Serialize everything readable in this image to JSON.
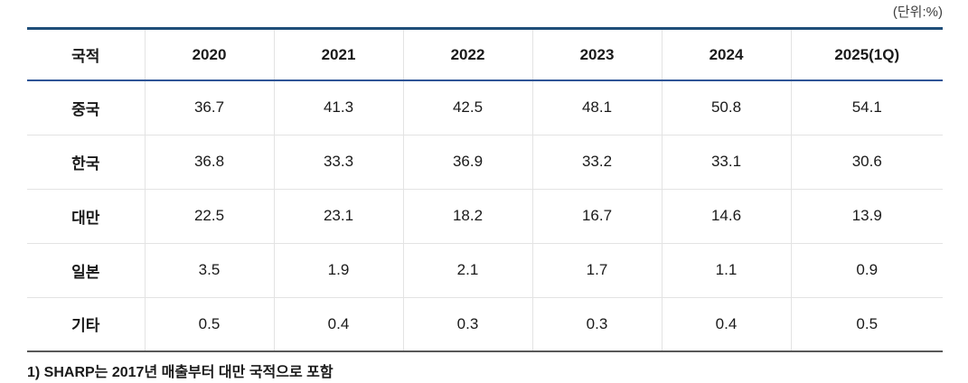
{
  "meta": {
    "unit_label": "(단위:%)"
  },
  "table": {
    "header": [
      "국적",
      "2020",
      "2021",
      "2022",
      "2023",
      "2024",
      "2025(1Q)"
    ],
    "rows": [
      {
        "label": "중국",
        "values": [
          "36.7",
          "41.3",
          "42.5",
          "48.1",
          "50.8",
          "54.1"
        ]
      },
      {
        "label": "한국",
        "values": [
          "36.8",
          "33.3",
          "36.9",
          "33.2",
          "33.1",
          "30.6"
        ]
      },
      {
        "label": "대만",
        "values": [
          "22.5",
          "23.1",
          "18.2",
          "16.7",
          "14.6",
          "13.9"
        ]
      },
      {
        "label": "일본",
        "values": [
          "3.5",
          "1.9",
          "2.1",
          "1.7",
          "1.1",
          "0.9"
        ]
      },
      {
        "label": "기타",
        "values": [
          "0.5",
          "0.4",
          "0.3",
          "0.3",
          "0.4",
          "0.5"
        ]
      }
    ]
  },
  "footnote": "1) SHARP는 2017년 매출부터 대만 국적으로 포함",
  "colors": {
    "top_border": "#1F4E79",
    "header_border": "#2F5597",
    "bottom_border": "#595959",
    "grid_line": "#E3E3E3"
  },
  "chart_data": {
    "type": "table",
    "title": "국적별 비중",
    "unit": "%",
    "columns": [
      "국적",
      "2020",
      "2021",
      "2022",
      "2023",
      "2024",
      "2025(1Q)"
    ],
    "rows": [
      [
        "중국",
        36.7,
        41.3,
        42.5,
        48.1,
        50.8,
        54.1
      ],
      [
        "한국",
        36.8,
        33.3,
        36.9,
        33.2,
        33.1,
        30.6
      ],
      [
        "대만",
        22.5,
        23.1,
        18.2,
        16.7,
        14.6,
        13.9
      ],
      [
        "일본",
        3.5,
        1.9,
        2.1,
        1.7,
        1.1,
        0.9
      ],
      [
        "기타",
        0.5,
        0.4,
        0.3,
        0.3,
        0.4,
        0.5
      ]
    ],
    "footnote": "1) SHARP는 2017년 매출부터 대만 국적으로 포함"
  }
}
